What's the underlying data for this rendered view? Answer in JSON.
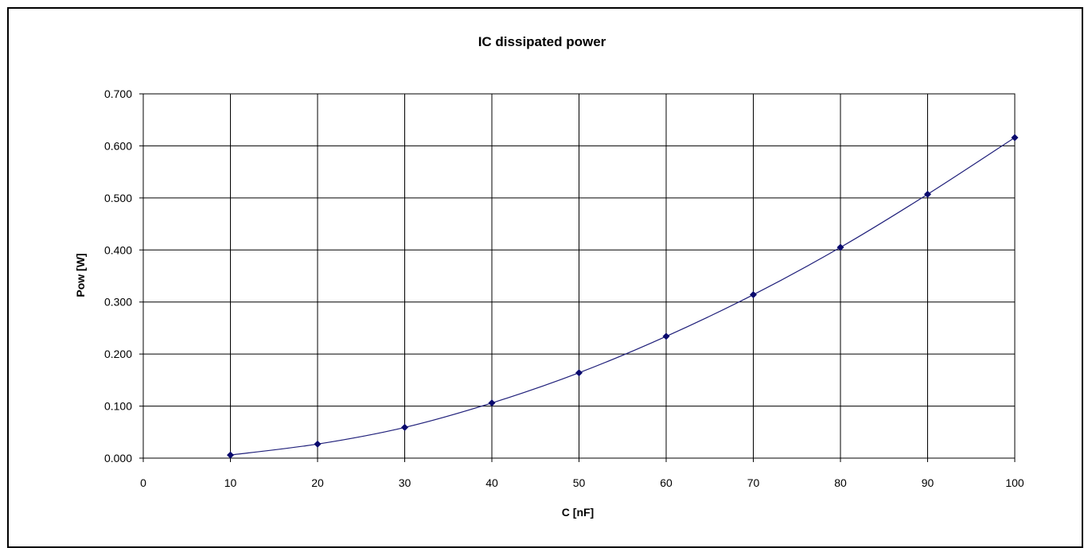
{
  "chart_data": {
    "type": "line",
    "title": "IC dissipated power",
    "xlabel": "C [nF]",
    "ylabel": "Pow [W]",
    "xlim": [
      0,
      100
    ],
    "ylim": [
      0,
      0.7
    ],
    "x_ticks": [
      "0",
      "10",
      "20",
      "30",
      "40",
      "50",
      "60",
      "70",
      "80",
      "90",
      "100"
    ],
    "y_ticks": [
      "0.000",
      "0.100",
      "0.200",
      "0.300",
      "0.400",
      "0.500",
      "0.600",
      "0.700"
    ],
    "grid": true,
    "legend": "none",
    "series": [
      {
        "x": [
          10,
          20,
          30,
          40,
          50,
          60,
          70,
          80,
          90,
          100
        ],
        "y": [
          0.006,
          0.027,
          0.059,
          0.106,
          0.164,
          0.234,
          0.314,
          0.405,
          0.507,
          0.616
        ],
        "color": "#1f1f7a",
        "marker": "diamond"
      }
    ]
  }
}
